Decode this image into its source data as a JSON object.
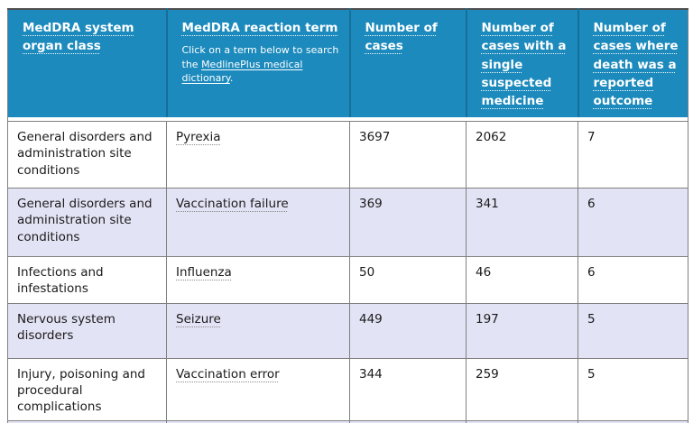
{
  "table": {
    "columns": [
      {
        "label": "MedDRA system organ class"
      },
      {
        "label": "MedDRA reaction term",
        "note_prefix": "Click on a term below to search the ",
        "note_link": "MedlinePlus medical dictionary",
        "note_suffix": "."
      },
      {
        "label": "Number of cases"
      },
      {
        "label": "Number of cases with a single suspected medicine"
      },
      {
        "label": "Number of cases where death was a reported outcome"
      }
    ],
    "rows": [
      {
        "organ_class": "General disorders and administration site conditions",
        "reaction_term": "Pyrexia",
        "cases": "3697",
        "single_suspected": "2062",
        "deaths": "7"
      },
      {
        "organ_class": "General disorders and administration site conditions",
        "reaction_term": "Vaccination failure",
        "cases": "369",
        "single_suspected": "341",
        "deaths": "6"
      },
      {
        "organ_class": "Infections and infestations",
        "reaction_term": "Influenza",
        "cases": "50",
        "single_suspected": "46",
        "deaths": "6"
      },
      {
        "organ_class": "Nervous system disorders",
        "reaction_term": "Seizure",
        "cases": "449",
        "single_suspected": "197",
        "deaths": "5"
      },
      {
        "organ_class": "Injury, poisoning and procedural complications",
        "reaction_term": "Vaccination error",
        "cases": "344",
        "single_suspected": "259",
        "deaths": "5"
      }
    ],
    "colors": {
      "header_bg": "#1c8abc",
      "header_separator": "#156f99",
      "alt_row_bg": "#e3e3f6",
      "cell_border": "#808080",
      "header_text": "#ffffff",
      "body_text": "#1a1a1a"
    }
  }
}
